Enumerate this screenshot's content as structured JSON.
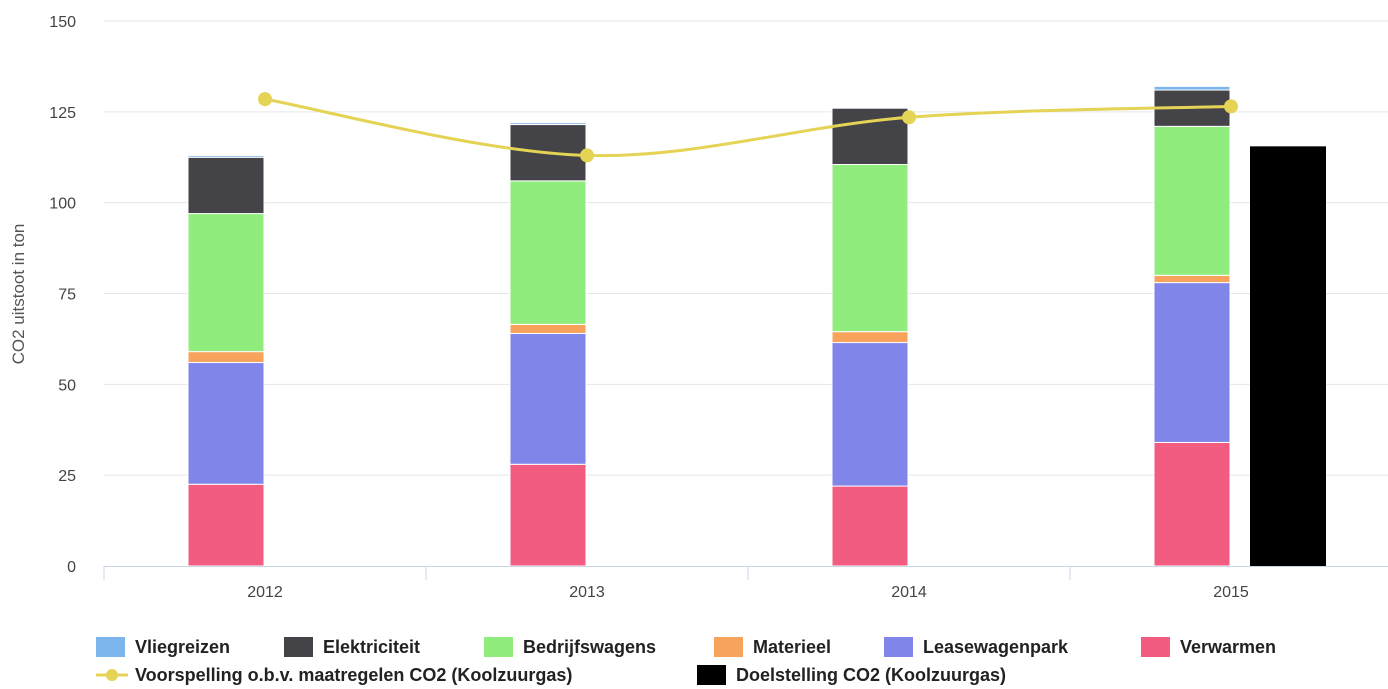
{
  "chart_data": {
    "type": "bar",
    "stacked": true,
    "categories": [
      "2012",
      "2013",
      "2014",
      "2015"
    ],
    "ylabel": "CO2 uitstoot in ton",
    "xlabel": "",
    "ylim": [
      0,
      150
    ],
    "yticks": [
      0,
      25,
      50,
      75,
      100,
      125,
      150
    ],
    "grid": true,
    "legend_position": "bottom",
    "series": [
      {
        "name": "Verwarmen",
        "color": "#f15c80",
        "values": [
          22.5,
          28,
          22,
          34
        ]
      },
      {
        "name": "Leasewagenpark",
        "color": "#8085e9",
        "values": [
          33.5,
          36,
          39.5,
          44
        ]
      },
      {
        "name": "Materieel",
        "color": "#f7a35c",
        "values": [
          3,
          2.5,
          3,
          2
        ]
      },
      {
        "name": "Bedrijfswagens",
        "color": "#90ed7d",
        "values": [
          38,
          39.5,
          46,
          41
        ]
      },
      {
        "name": "Elektriciteit",
        "color": "#434348",
        "values": [
          15.5,
          15.5,
          15.5,
          10
        ]
      },
      {
        "name": "Vliegreizen",
        "color": "#7cb5ec",
        "values": [
          0.5,
          0.5,
          0,
          1
        ]
      }
    ],
    "target_series": {
      "name": "Doelstelling CO2 (Koolzuurgas)",
      "color": "#000000",
      "category": "2015",
      "value": 115.5
    },
    "line_series": {
      "name": "Voorspelling o.b.v. maatregelen CO2 (Koolzuurgas)",
      "color": "#e4d354",
      "values": [
        128.5,
        113,
        123.5,
        126.5
      ]
    },
    "legend_order": [
      "Vliegreizen",
      "Elektriciteit",
      "Bedrijfswagens",
      "Materieel",
      "Leasewagenpark",
      "Verwarmen",
      "Voorspelling o.b.v. maatregelen CO2 (Koolzuurgas)",
      "Doelstelling CO2 (Koolzuurgas)"
    ]
  }
}
